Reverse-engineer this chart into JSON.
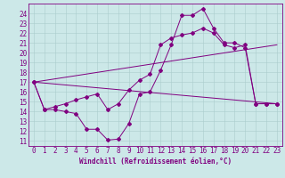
{
  "xlabel": "Windchill (Refroidissement éolien,°C)",
  "background_color": "#cce8e8",
  "line_color": "#800080",
  "xlim": [
    -0.5,
    23.5
  ],
  "ylim": [
    10.5,
    25.0
  ],
  "xticks": [
    0,
    1,
    2,
    3,
    4,
    5,
    6,
    7,
    8,
    9,
    10,
    11,
    12,
    13,
    14,
    15,
    16,
    17,
    18,
    19,
    20,
    21,
    22,
    23
  ],
  "yticks": [
    11,
    12,
    13,
    14,
    15,
    16,
    17,
    18,
    19,
    20,
    21,
    22,
    23,
    24
  ],
  "line1_x": [
    0,
    1,
    2,
    3,
    4,
    5,
    6,
    7,
    8,
    9,
    10,
    11,
    12,
    13,
    14,
    15,
    16,
    17,
    18,
    19,
    20,
    21,
    22,
    23
  ],
  "line1_y": [
    17.0,
    14.2,
    14.2,
    14.0,
    13.8,
    12.2,
    12.2,
    11.1,
    11.2,
    12.8,
    15.8,
    16.0,
    18.2,
    20.8,
    23.8,
    23.8,
    24.5,
    22.5,
    21.0,
    21.0,
    20.5,
    14.8,
    14.8,
    14.8
  ],
  "line2_x": [
    0,
    1,
    2,
    3,
    4,
    5,
    6,
    7,
    8,
    9,
    10,
    11,
    12,
    13,
    14,
    15,
    16,
    17,
    18,
    19,
    20,
    21,
    22,
    23
  ],
  "line2_y": [
    17.0,
    14.2,
    14.5,
    14.8,
    15.2,
    15.5,
    15.8,
    14.2,
    14.8,
    16.2,
    17.2,
    17.8,
    20.8,
    21.5,
    21.8,
    22.0,
    22.5,
    22.0,
    20.8,
    20.5,
    20.8,
    14.8,
    14.8,
    14.8
  ],
  "line3_x": [
    0,
    23
  ],
  "line3_y": [
    17.0,
    14.8
  ],
  "line4_x": [
    0,
    23
  ],
  "line4_y": [
    17.0,
    20.8
  ],
  "grid_color": "#aacccc",
  "marker": "D",
  "markersize": 2.0,
  "linewidth": 0.7,
  "tick_fontsize": 5.5,
  "xlabel_fontsize": 5.5
}
